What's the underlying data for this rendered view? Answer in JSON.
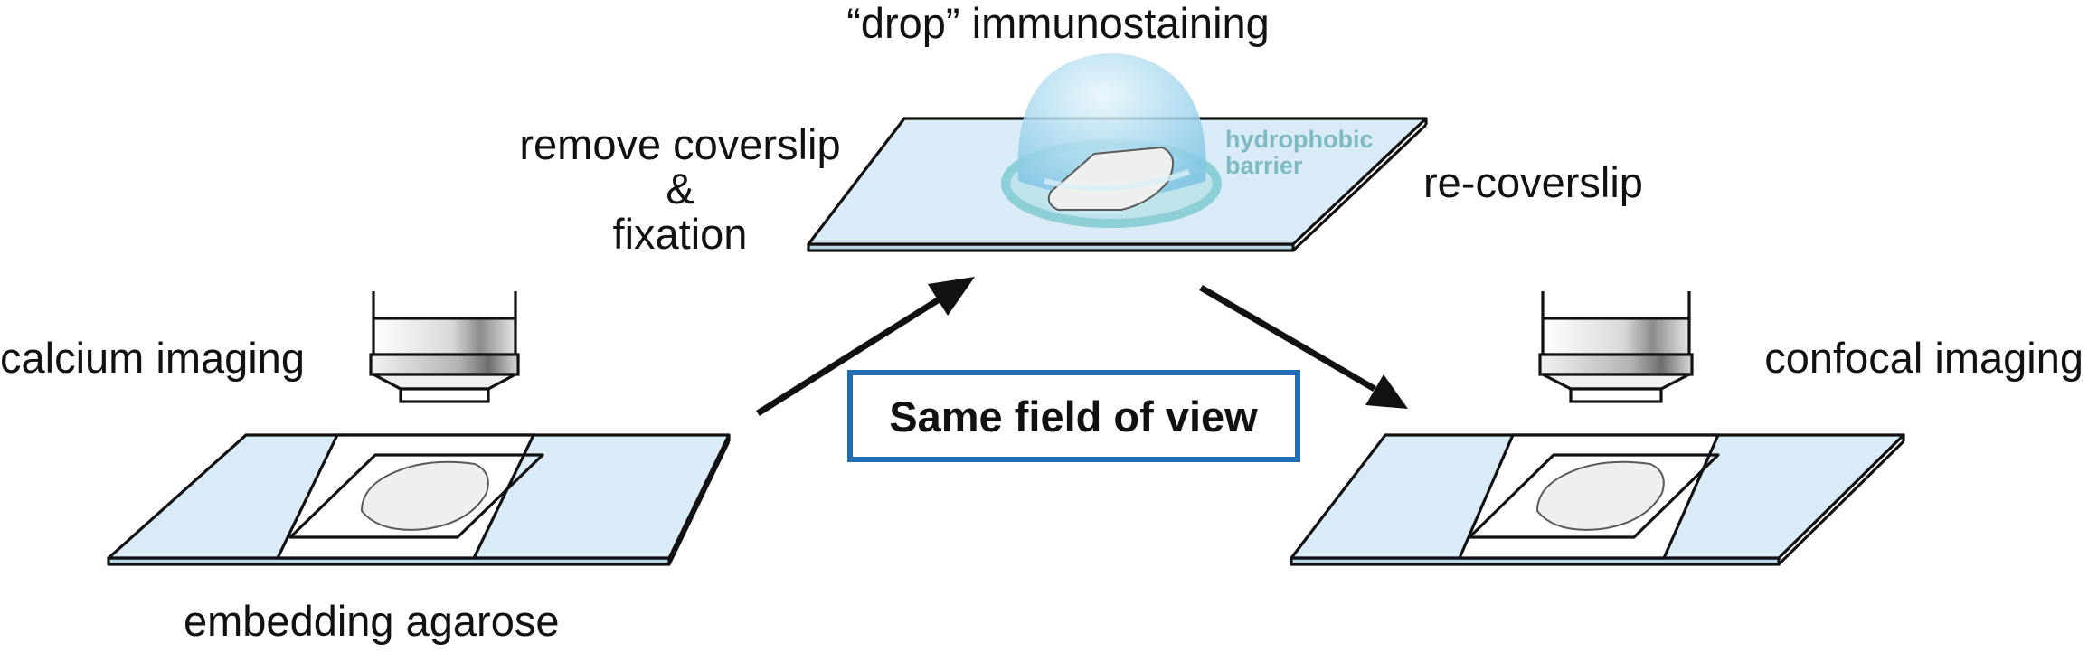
{
  "labels": {
    "calcium_imaging": "calcium imaging",
    "embedding_agarose": "embedding agarose",
    "remove_coverslip": "remove coverslip",
    "ampersand": "&",
    "fixation": "fixation",
    "drop_immunostaining": "“drop” immunostaining",
    "hydrophobic": "hydrophobic",
    "barrier": "barrier",
    "re_coverslip": "re-coverslip",
    "confocal_imaging": "confocal imaging",
    "same_field_of_view": "Same field of view"
  },
  "colors": {
    "slide_fill": "#d8ebf7",
    "drop_fill": "#9fd3ec",
    "barrier_ring": "#8ccfd6",
    "barrier_text": "#7fb9c2",
    "stain_fill": "#a9d9d9",
    "box_border": "#1f6db3",
    "ink": "#111111"
  }
}
